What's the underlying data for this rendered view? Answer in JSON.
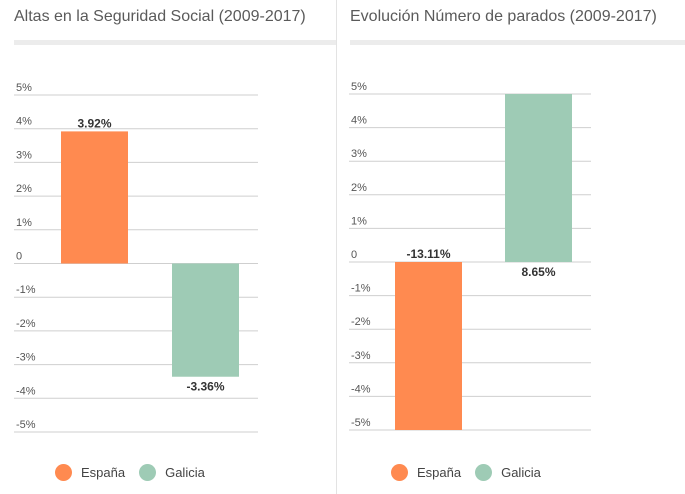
{
  "colors": {
    "espana": "#ff8a50",
    "galicia": "#9ecbb5",
    "grid": "#cfcfcf",
    "tick": "#555555",
    "label": "#333333"
  },
  "chart_data": [
    {
      "type": "bar",
      "title": "Altas en la Seguridad Social (2009-2017)",
      "categories": [
        "España",
        "Galicia"
      ],
      "values": [
        3.92,
        -3.36
      ],
      "value_labels": [
        "3.92%",
        "-3.36%"
      ],
      "ylim": [
        -5,
        5
      ],
      "yticks": [
        5,
        4,
        3,
        2,
        1,
        0,
        -1,
        -2,
        -3,
        -4,
        -5
      ],
      "ytick_labels": [
        "5%",
        "4%",
        "3%",
        "2%",
        "1%",
        "0",
        "-1%",
        "-2%",
        "-3%",
        "-4%",
        "-5%"
      ],
      "legend": [
        "España",
        "Galicia"
      ],
      "legend_position": "bottom",
      "grid": true
    },
    {
      "type": "bar",
      "title": "Evolución Número de parados (2009-2017)",
      "categories": [
        "España",
        "Galicia"
      ],
      "values": [
        -13.11,
        8.65
      ],
      "value_labels": [
        "-13.11%",
        "8.65%"
      ],
      "ylim": [
        -5,
        5
      ],
      "yticks": [
        5,
        4,
        3,
        2,
        1,
        0,
        -1,
        -2,
        -3,
        -4,
        -5
      ],
      "ytick_labels": [
        "5%",
        "4%",
        "3%",
        "2%",
        "1%",
        "0",
        "-1%",
        "-2%",
        "-3%",
        "-4%",
        "-5%"
      ],
      "legend": [
        "España",
        "Galicia"
      ],
      "legend_position": "bottom",
      "grid": true
    }
  ]
}
